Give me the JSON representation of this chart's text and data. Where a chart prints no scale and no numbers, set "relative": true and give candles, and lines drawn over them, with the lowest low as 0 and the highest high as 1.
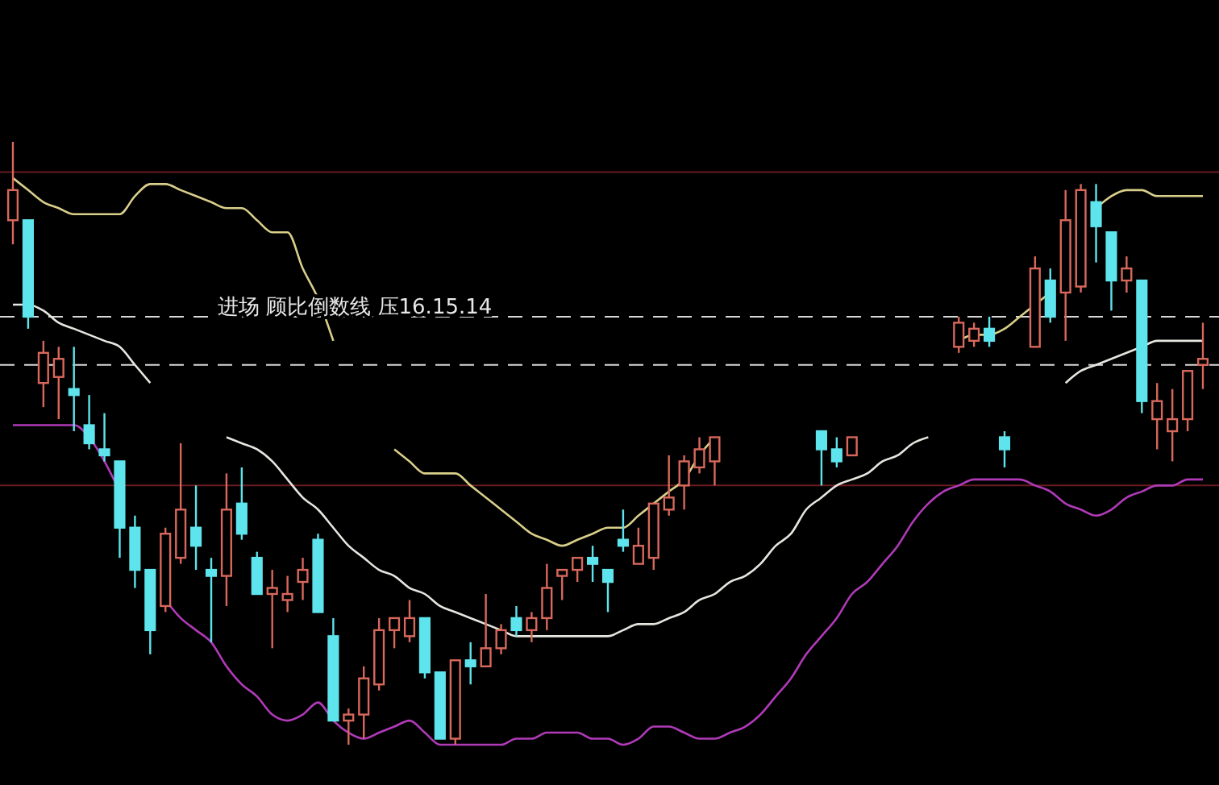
{
  "chart_data": {
    "type": "candlestick",
    "relative": true,
    "categories": [
      null,
      null,
      null,
      null,
      null,
      null,
      null,
      null,
      null,
      null,
      null,
      null,
      null,
      null,
      null,
      null,
      null,
      null,
      null,
      null,
      null,
      null,
      null,
      null,
      null,
      null,
      null,
      null,
      null,
      null,
      null,
      null,
      null,
      null,
      null,
      null,
      null,
      null,
      null,
      null,
      null,
      null,
      null,
      null,
      null,
      null,
      null,
      null,
      null,
      null,
      null,
      null,
      null,
      null,
      null,
      null,
      null,
      null,
      null,
      null,
      null,
      null,
      null,
      null,
      null,
      null,
      null,
      null,
      null,
      null,
      null,
      null,
      null,
      null,
      null,
      null,
      null,
      null,
      null
    ],
    "ohlc": [
      [
        0.87,
        1.0,
        0.83,
        0.92
      ],
      [
        0.87,
        0.87,
        0.69,
        0.71
      ],
      [
        0.6,
        0.67,
        0.56,
        0.65
      ],
      [
        0.61,
        0.66,
        0.54,
        0.64
      ],
      [
        0.59,
        0.66,
        0.52,
        0.58
      ],
      [
        0.53,
        0.58,
        0.49,
        0.5
      ],
      [
        0.49,
        0.55,
        0.47,
        0.48
      ],
      [
        0.47,
        0.47,
        0.31,
        0.36
      ],
      [
        0.36,
        0.38,
        0.26,
        0.29
      ],
      [
        0.29,
        0.29,
        0.15,
        0.19
      ],
      [
        0.23,
        0.36,
        0.22,
        0.35
      ],
      [
        0.31,
        0.5,
        0.3,
        0.39
      ],
      [
        0.36,
        0.43,
        0.29,
        0.33
      ],
      [
        0.29,
        0.31,
        0.17,
        0.28
      ],
      [
        0.28,
        0.45,
        0.23,
        0.39
      ],
      [
        0.4,
        0.46,
        0.34,
        0.35
      ],
      [
        0.31,
        0.32,
        0.25,
        0.25
      ],
      [
        0.25,
        0.29,
        0.16,
        0.26
      ],
      [
        0.24,
        0.28,
        0.22,
        0.25
      ],
      [
        0.27,
        0.31,
        0.24,
        0.29
      ],
      [
        0.34,
        0.35,
        0.22,
        0.22
      ],
      [
        0.18,
        0.21,
        0.04,
        0.04
      ],
      [
        0.04,
        0.06,
        0.0,
        0.05
      ],
      [
        0.05,
        0.13,
        0.01,
        0.11
      ],
      [
        0.1,
        0.21,
        0.09,
        0.19
      ],
      [
        0.19,
        0.21,
        0.16,
        0.21
      ],
      [
        0.18,
        0.24,
        0.17,
        0.21
      ],
      [
        0.21,
        0.21,
        0.11,
        0.12
      ],
      [
        0.12,
        0.12,
        0.01,
        0.01
      ],
      [
        0.01,
        0.14,
        0.0,
        0.14
      ],
      [
        0.14,
        0.17,
        0.1,
        0.13
      ],
      [
        0.13,
        0.25,
        0.13,
        0.16
      ],
      [
        0.16,
        0.2,
        0.15,
        0.19
      ],
      [
        0.21,
        0.23,
        0.18,
        0.19
      ],
      [
        0.19,
        0.22,
        0.17,
        0.21
      ],
      [
        0.21,
        0.3,
        0.19,
        0.26
      ],
      [
        0.28,
        0.29,
        0.24,
        0.29
      ],
      [
        0.29,
        0.31,
        0.27,
        0.31
      ],
      [
        0.31,
        0.33,
        0.27,
        0.3
      ],
      [
        0.29,
        0.29,
        0.22,
        0.27
      ],
      [
        0.34,
        0.39,
        0.32,
        0.33
      ],
      [
        0.3,
        0.36,
        0.3,
        0.33
      ],
      [
        0.31,
        0.4,
        0.29,
        0.4
      ],
      [
        0.39,
        0.48,
        0.38,
        0.41
      ],
      [
        0.43,
        0.48,
        0.39,
        0.47
      ],
      [
        0.46,
        0.51,
        0.45,
        0.49
      ],
      [
        0.47,
        0.51,
        0.43,
        0.51
      ],
      null,
      null,
      null,
      null,
      null,
      null,
      [
        0.52,
        0.52,
        0.43,
        0.49
      ],
      [
        0.49,
        0.51,
        0.46,
        0.47
      ],
      [
        0.48,
        0.51,
        0.48,
        0.51
      ],
      null,
      null,
      null,
      null,
      null,
      null,
      [
        0.66,
        0.71,
        0.65,
        0.7
      ],
      [
        0.67,
        0.7,
        0.66,
        0.69
      ],
      [
        0.69,
        0.71,
        0.66,
        0.67
      ],
      [
        0.51,
        0.52,
        0.46,
        0.49
      ],
      null,
      [
        0.66,
        0.81,
        0.66,
        0.79
      ],
      [
        0.77,
        0.79,
        0.7,
        0.71
      ],
      [
        0.75,
        0.92,
        0.67,
        0.87
      ],
      [
        0.76,
        0.93,
        0.75,
        0.92
      ],
      [
        0.9,
        0.93,
        0.8,
        0.86
      ],
      [
        0.85,
        0.85,
        0.72,
        0.77
      ],
      [
        0.77,
        0.81,
        0.75,
        0.79
      ],
      [
        0.77,
        0.77,
        0.55,
        0.57
      ],
      [
        0.54,
        0.6,
        0.49,
        0.57
      ],
      [
        0.52,
        0.59,
        0.47,
        0.54
      ],
      [
        0.54,
        0.62,
        0.52,
        0.62
      ],
      [
        0.63,
        0.7,
        0.59,
        0.64
      ]
    ],
    "series": [
      {
        "type": "line",
        "color": "#d9cf8a",
        "values": [
          0.94,
          0.92,
          0.9,
          0.89,
          0.88,
          0.88,
          0.88,
          0.88,
          0.91,
          0.93,
          0.93,
          0.92,
          0.91,
          0.9,
          0.89,
          0.89,
          0.87,
          0.85,
          0.85,
          0.79,
          0.74,
          0.67,
          null,
          null,
          null,
          0.49,
          0.47,
          0.45,
          0.45,
          0.45,
          0.43,
          0.41,
          0.39,
          0.37,
          0.35,
          0.34,
          0.33,
          0.34,
          0.35,
          0.36,
          0.36,
          0.38,
          0.4,
          0.42,
          0.44,
          0.48,
          0.51,
          null,
          null,
          null,
          null,
          null,
          null,
          null,
          null,
          null,
          null,
          null,
          null,
          null,
          null,
          null,
          0.67,
          0.68,
          0.68,
          0.69,
          0.71,
          0.73,
          0.75,
          null,
          null,
          0.89,
          0.91,
          0.92,
          0.92,
          0.91,
          0.91,
          0.91,
          0.91
        ]
      },
      {
        "type": "line",
        "color": "#e6e6e0",
        "values": [
          0.73,
          0.73,
          0.72,
          0.7,
          0.69,
          0.68,
          0.67,
          0.66,
          0.63,
          0.6,
          null,
          null,
          null,
          null,
          0.51,
          0.5,
          0.49,
          0.47,
          0.44,
          0.41,
          0.39,
          0.36,
          0.33,
          0.31,
          0.29,
          0.28,
          0.26,
          0.25,
          0.23,
          0.22,
          0.21,
          0.2,
          0.19,
          0.18,
          0.18,
          0.18,
          0.18,
          0.18,
          0.18,
          0.18,
          0.19,
          0.2,
          0.2,
          0.21,
          0.22,
          0.24,
          0.25,
          0.27,
          0.28,
          0.3,
          0.33,
          0.35,
          0.39,
          0.41,
          0.43,
          0.44,
          0.45,
          0.47,
          0.48,
          0.5,
          0.51,
          null,
          null,
          null,
          null,
          null,
          null,
          null,
          null,
          0.6,
          0.62,
          0.63,
          0.64,
          0.65,
          0.66,
          0.67,
          0.67,
          0.67,
          0.67
        ]
      },
      {
        "type": "line",
        "color": "#b03ab8",
        "values": [
          0.53,
          0.53,
          0.53,
          0.53,
          0.53,
          0.51,
          0.47,
          0.42,
          null,
          null,
          0.24,
          0.21,
          0.19,
          0.17,
          0.13,
          0.1,
          0.08,
          0.05,
          0.04,
          0.05,
          0.07,
          0.04,
          0.02,
          0.01,
          0.02,
          0.03,
          0.04,
          0.02,
          0.0,
          0.0,
          0.0,
          0.0,
          0.0,
          0.01,
          0.01,
          0.02,
          0.02,
          0.02,
          0.01,
          0.01,
          0.0,
          0.01,
          0.03,
          0.03,
          0.02,
          0.01,
          0.01,
          0.02,
          0.03,
          0.05,
          0.08,
          0.11,
          0.15,
          0.18,
          0.21,
          0.25,
          0.27,
          0.3,
          0.33,
          0.37,
          0.4,
          0.42,
          0.43,
          0.44,
          0.44,
          0.44,
          0.44,
          0.43,
          0.42,
          0.4,
          0.39,
          0.38,
          0.39,
          0.41,
          0.42,
          0.43,
          0.43,
          0.44,
          0.44
        ]
      }
    ],
    "ref_lines": [
      {
        "axis": "y",
        "value": 0.95,
        "color": "#6a1c22",
        "line_style": "solid"
      },
      {
        "axis": "y",
        "value": 0.43,
        "color": "#6a1c22",
        "line_style": "solid"
      },
      {
        "axis": "y",
        "value": 0.71,
        "color": "#d8d8d8",
        "line_style": "dashed",
        "label": "进场 顾比倒数线 压16.15.14"
      },
      {
        "axis": "y",
        "value": 0.63,
        "color": "#d8d8d8",
        "line_style": "dashed"
      }
    ]
  }
}
